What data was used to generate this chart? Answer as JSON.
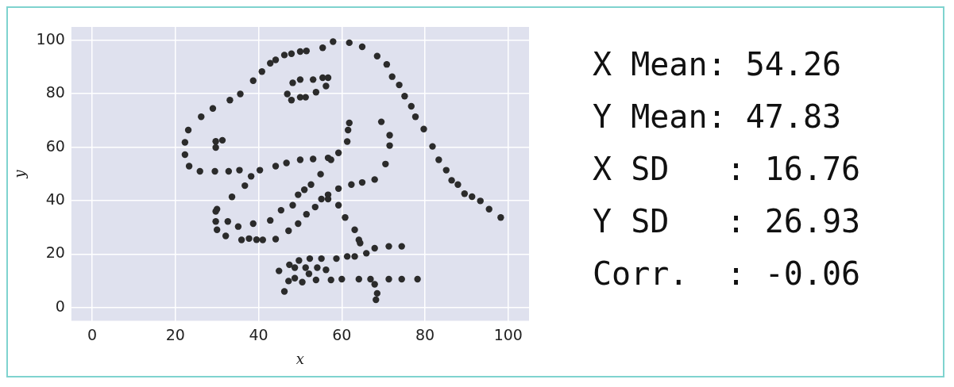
{
  "chart_data": {
    "type": "scatter",
    "xlabel": "x",
    "ylabel": "y",
    "xlim": [
      -5,
      105
    ],
    "ylim": [
      -5,
      105
    ],
    "xticks": [
      0,
      20,
      40,
      60,
      80,
      100
    ],
    "yticks": [
      0,
      20,
      40,
      60,
      80,
      100
    ],
    "grid": true,
    "marker": "circle",
    "legend": false,
    "annotations": [
      "X Mean: 54.26",
      "Y Mean: 47.83",
      "X SD   : 16.76",
      "Y SD   : 26.93",
      "Corr.  : -0.06"
    ],
    "series": [
      {
        "color": "#2b2b2b",
        "x": [
          55.4,
          51.5,
          46.2,
          42.8,
          40.8,
          38.7,
          35.6,
          33.1,
          29.0,
          26.2,
          23.1,
          22.3,
          22.3,
          23.3,
          25.9,
          29.5,
          32.8,
          35.4,
          40.3,
          44.1,
          46.7,
          50.0,
          53.1,
          56.7,
          59.2,
          61.3,
          61.5,
          61.8,
          57.4,
          54.9,
          52.6,
          48.2,
          49.5,
          51.0,
          45.4,
          42.8,
          38.7,
          35.1,
          32.6,
          30.0,
          33.6,
          36.7,
          38.2,
          29.7,
          29.7,
          30.0,
          32.1,
          35.9,
          41.0,
          44.1,
          47.2,
          49.5,
          51.5,
          53.6,
          55.1,
          56.7,
          59.2,
          62.3,
          64.9,
          67.9,
          70.5,
          71.5,
          71.5,
          69.5,
          46.9,
          48.2,
          50.0,
          53.1,
          55.4,
          56.7,
          56.2,
          53.8,
          51.3,
          50.0,
          47.9,
          29.7,
          29.7,
          31.3,
          57.9,
          61.8,
          64.9,
          68.5,
          70.8,
          72.1,
          73.8,
          75.1,
          76.7,
          77.7,
          79.7,
          81.8,
          83.3,
          85.1,
          86.4,
          87.9,
          89.5,
          93.3,
          95.4,
          98.2,
          56.7,
          59.2,
          60.8,
          63.1,
          64.1,
          64.4,
          74.4,
          71.3,
          67.9,
          65.9,
          63.1,
          61.3,
          58.7,
          55.1,
          52.3,
          49.7,
          47.4,
          44.9,
          48.7,
          51.3,
          54.1,
          56.2,
          52.1,
          48.7,
          47.2,
          46.2,
          50.5,
          53.8,
          57.4,
          60.0,
          64.1,
          66.9,
          71.3,
          74.4,
          78.2,
          67.9,
          68.5,
          68.2,
          37.7,
          39.5,
          91.3,
          50.0,
          47.9,
          44.1
        ],
        "values": [
          97.2,
          96.0,
          94.5,
          91.4,
          88.3,
          84.9,
          79.9,
          77.6,
          74.5,
          71.4,
          66.4,
          61.8,
          57.2,
          52.9,
          51.0,
          51.0,
          51.0,
          51.4,
          51.4,
          52.9,
          54.1,
          55.3,
          55.6,
          56.0,
          57.9,
          62.1,
          66.4,
          69.1,
          55.3,
          49.9,
          46.0,
          38.3,
          42.2,
          44.1,
          36.4,
          32.6,
          31.4,
          30.3,
          32.2,
          36.8,
          41.4,
          45.6,
          49.1,
          36.0,
          32.2,
          29.1,
          26.8,
          25.3,
          25.3,
          25.6,
          28.7,
          31.4,
          34.9,
          37.6,
          40.6,
          42.2,
          44.5,
          46.0,
          46.8,
          47.9,
          53.7,
          60.6,
          64.5,
          69.5,
          79.9,
          84.1,
          85.3,
          85.3,
          86.0,
          86.0,
          82.9,
          80.6,
          78.7,
          78.7,
          77.6,
          59.9,
          62.2,
          62.6,
          99.5,
          99.1,
          97.6,
          94.1,
          91.0,
          86.4,
          83.3,
          79.1,
          75.3,
          71.4,
          66.8,
          60.3,
          55.3,
          51.4,
          47.6,
          46.0,
          42.6,
          39.9,
          36.8,
          33.7,
          40.6,
          38.3,
          33.7,
          29.1,
          25.3,
          24.1,
          22.9,
          22.9,
          22.2,
          20.3,
          19.1,
          19.1,
          18.3,
          18.3,
          18.3,
          17.6,
          16.0,
          13.7,
          14.9,
          14.9,
          14.9,
          14.1,
          12.6,
          11.0,
          9.9,
          6.0,
          9.5,
          10.3,
          10.3,
          10.6,
          10.6,
          10.6,
          10.6,
          10.6,
          10.6,
          8.7,
          5.3,
          2.9,
          25.8,
          25.4,
          41.5,
          95.8,
          95.0,
          92.7
        ]
      }
    ]
  }
}
